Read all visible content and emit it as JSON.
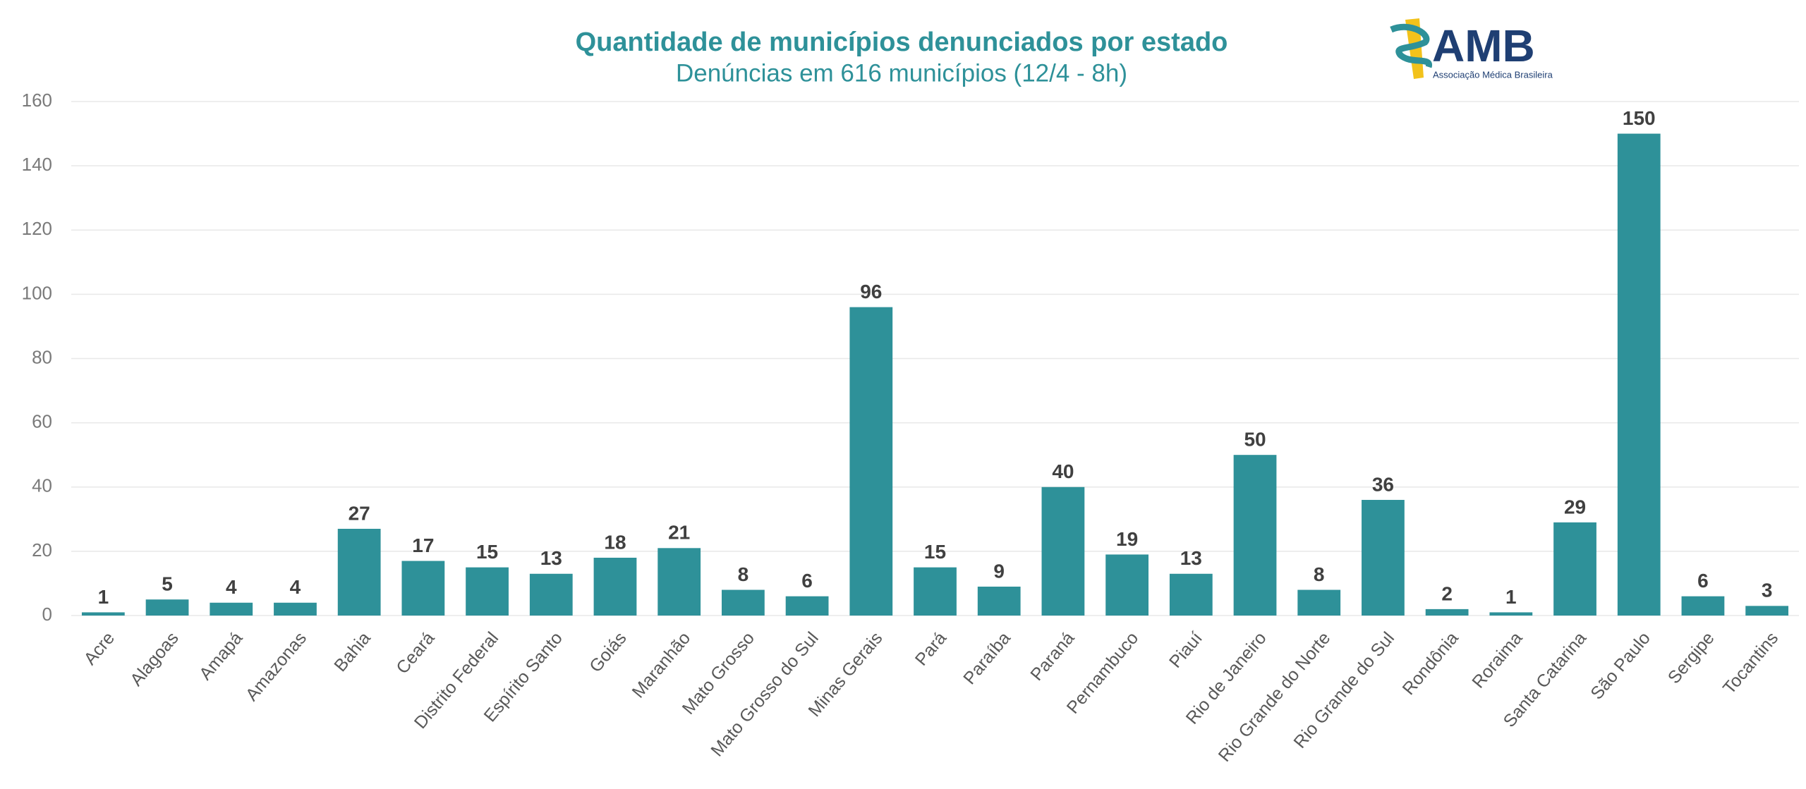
{
  "chart_data": {
    "type": "bar",
    "title": "Quantidade de municípios denunciados por estado",
    "subtitle": "Denúncias em 616 municípios (12/4 - 8h)",
    "categories": [
      "Acre",
      "Alagoas",
      "Amapá",
      "Amazonas",
      "Bahia",
      "Ceará",
      "Distrito Federal",
      "Espírito Santo",
      "Goiás",
      "Maranhão",
      "Mato Grosso",
      "Mato Grosso do Sul",
      "Minas Gerais",
      "Pará",
      "Paraíba",
      "Paraná",
      "Pernambuco",
      "Piauí",
      "Rio de Janeiro",
      "Rio Grande do Norte",
      "Rio Grande do Sul",
      "Rondônia",
      "Roraima",
      "Santa Catarina",
      "São Paulo",
      "Sergipe",
      "Tocantins"
    ],
    "values": [
      1,
      5,
      4,
      4,
      27,
      17,
      15,
      13,
      18,
      21,
      8,
      6,
      96,
      15,
      9,
      40,
      19,
      13,
      50,
      8,
      36,
      2,
      1,
      29,
      150,
      6,
      3
    ],
    "color": "#2e9199",
    "ylim": [
      0,
      160
    ],
    "yticks": [
      0,
      20,
      40,
      60,
      80,
      100,
      120,
      140,
      160
    ],
    "grid": true
  },
  "logo": {
    "name": "AMB",
    "subtitle": "Associação Médica Brasileira"
  }
}
